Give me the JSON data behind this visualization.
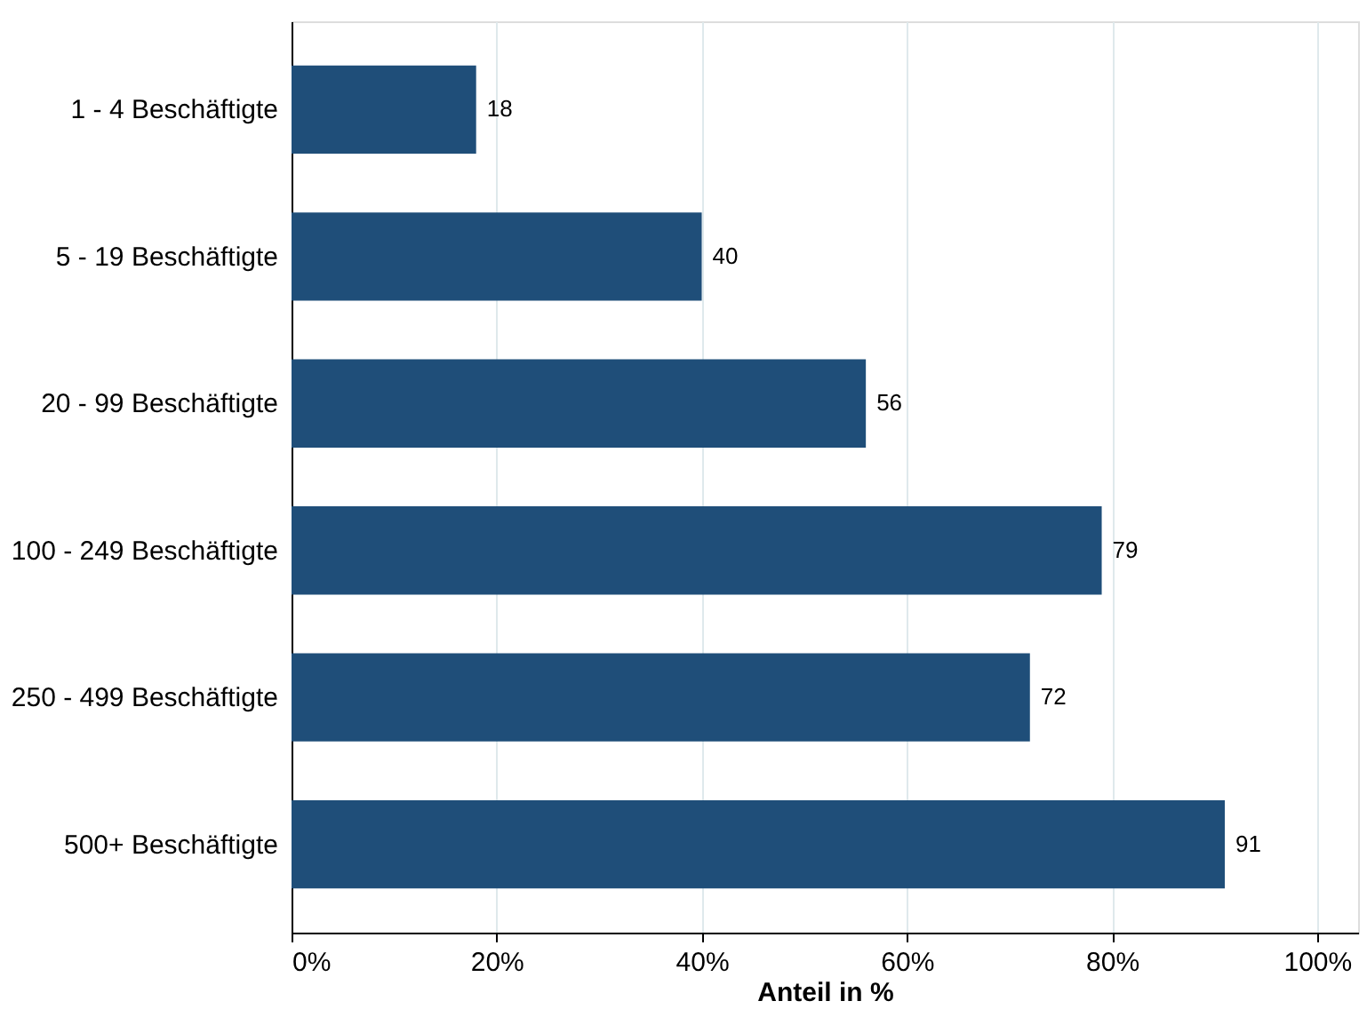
{
  "chart_data": {
    "type": "bar",
    "orientation": "horizontal",
    "xlabel": "Anteil in %",
    "categories": [
      "1 -   4 Beschäftigte",
      "5 -  19 Beschäftigte",
      "20 -  99 Beschäftigte",
      "100 - 249 Beschäftigte",
      "250 - 499 Beschäftigte",
      "500+ Beschäftigte"
    ],
    "values": [
      18,
      40,
      56,
      79,
      72,
      91
    ],
    "color": "#1f4e79",
    "xlim": [
      0,
      104
    ],
    "xticks": [
      {
        "value": 0,
        "label": "0%"
      },
      {
        "value": 20,
        "label": "20%"
      },
      {
        "value": 40,
        "label": "40%"
      },
      {
        "value": 60,
        "label": "60%"
      },
      {
        "value": 80,
        "label": "80%"
      },
      {
        "value": 100,
        "label": "100%"
      }
    ],
    "grid": "x",
    "data_labels": true
  }
}
